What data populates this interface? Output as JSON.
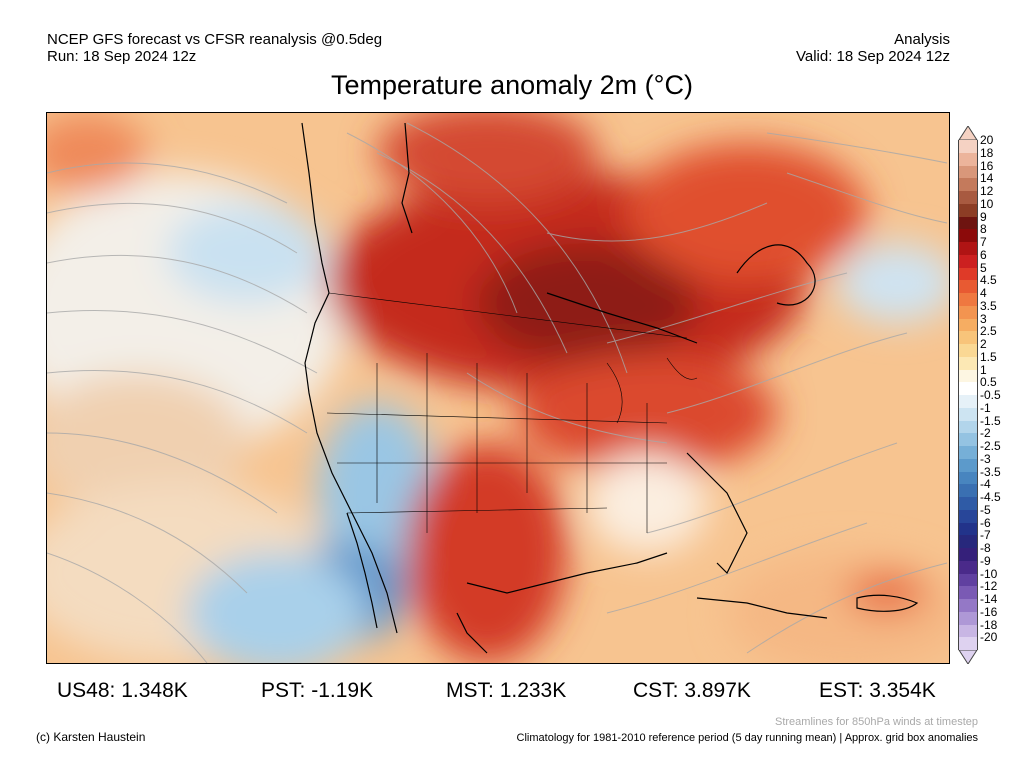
{
  "header": {
    "model_line": "NCEP GFS forecast vs CFSR reanalysis @0.5deg",
    "run_line": "Run: 18 Sep 2024 12z",
    "analysis_label": "Analysis",
    "valid_line": "Valid: 18 Sep 2024 12z"
  },
  "title": "Temperature anomaly 2m (°C)",
  "colorbar": {
    "labels": [
      "20",
      "18",
      "16",
      "14",
      "12",
      "10",
      "9",
      "8",
      "7",
      "6",
      "5",
      "4.5",
      "4",
      "3.5",
      "3",
      "2.5",
      "2",
      "1.5",
      "1",
      "0.5",
      "-0.5",
      "-1",
      "-1.5",
      "-2",
      "-2.5",
      "-3",
      "-3.5",
      "-4",
      "-4.5",
      "-5",
      "-6",
      "-7",
      "-8",
      "-9",
      "-10",
      "-12",
      "-14",
      "-16",
      "-18",
      "-20"
    ],
    "colors": [
      "#f5d2c3",
      "#ecb49b",
      "#d9977a",
      "#c47a5c",
      "#a85a40",
      "#8c3d25",
      "#6e1410",
      "#8c0a0a",
      "#b01414",
      "#cc2020",
      "#df3a28",
      "#e85a32",
      "#ef7840",
      "#f39450",
      "#f6ad62",
      "#f8c47a",
      "#fad894",
      "#fce8b4",
      "#fdf6e2",
      "#ffffff",
      "#e6f1f8",
      "#cde4f2",
      "#b2d5eb",
      "#94c3e2",
      "#76afd7",
      "#5c9acb",
      "#4885bf",
      "#3a70b2",
      "#2f5ba6",
      "#284699",
      "#22338a",
      "#27287c",
      "#35207a",
      "#4a2a8a",
      "#6040a0",
      "#7a5ab4",
      "#9478c6",
      "#ae98d6",
      "#c8b6e4",
      "#ded2f0"
    ]
  },
  "stats": [
    {
      "label": "US48:",
      "value": "1.348K"
    },
    {
      "label": "PST:",
      "value": "-1.19K"
    },
    {
      "label": "MST:",
      "value": "1.233K"
    },
    {
      "label": "CST:",
      "value": "3.897K"
    },
    {
      "label": "EST:",
      "value": "3.354K"
    }
  ],
  "footer": {
    "credit": "(c) Karsten Haustein",
    "streamline_note": "Streamlines for 850hPa winds at timestep",
    "climatology_note": "Climatology for 1981-2010 reference period (5 day running mean) | Approx. grid box anomalies"
  }
}
